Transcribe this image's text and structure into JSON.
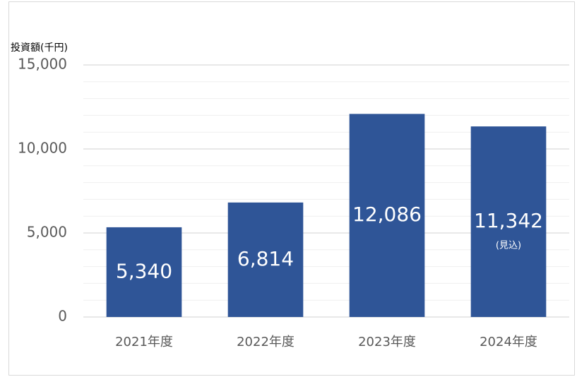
{
  "chart_data": {
    "type": "bar",
    "title": "投資額(千円)",
    "categories": [
      "2021年度",
      "2022年度",
      "2023年度",
      "2024年度"
    ],
    "values": [
      5340,
      6814,
      12086,
      11342
    ],
    "value_labels": [
      "5,340",
      "6,814",
      "12,086",
      "11,342"
    ],
    "annotation": "(見込)",
    "color": "#2f5597",
    "ylim": [
      0,
      15000
    ],
    "yticks": [
      0,
      {
        "value": 5000,
        "label": "5,000"
      },
      {
        "value": 10000,
        "label": "10,000"
      },
      {
        "value": 15000,
        "label": "15,000"
      }
    ],
    "minor_yticks": [
      1000,
      2000,
      3000,
      4000,
      6000,
      7000,
      8000,
      9000,
      11000,
      12000,
      13000,
      14000
    ],
    "grid": true
  }
}
